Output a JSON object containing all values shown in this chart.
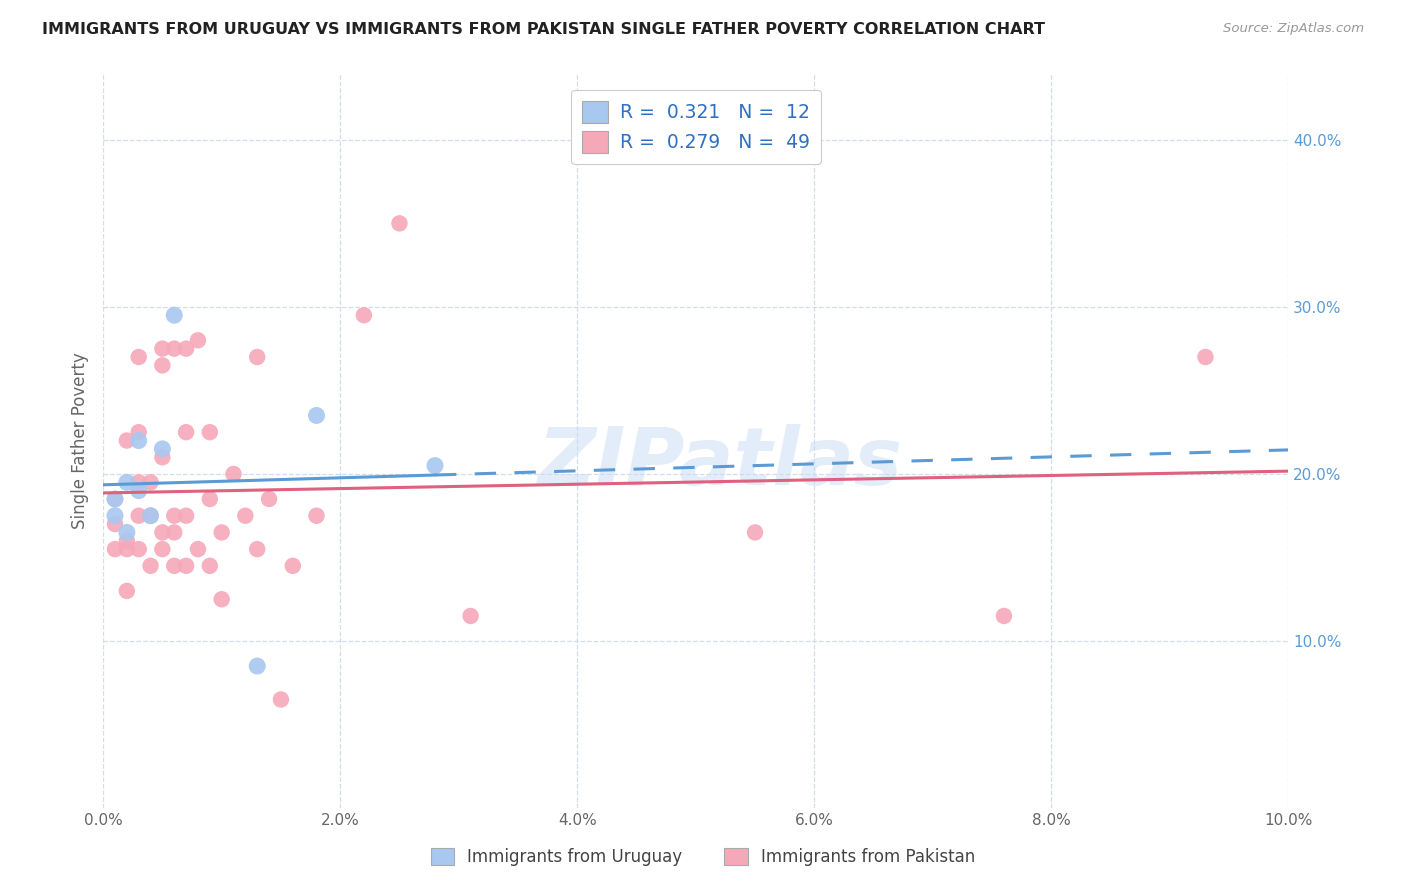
{
  "title": "IMMIGRANTS FROM URUGUAY VS IMMIGRANTS FROM PAKISTAN SINGLE FATHER POVERTY CORRELATION CHART",
  "source": "Source: ZipAtlas.com",
  "ylabel": "Single Father Poverty",
  "xlim": [
    0.0,
    0.1
  ],
  "ylim": [
    0.0,
    0.44
  ],
  "xticks": [
    0.0,
    0.02,
    0.04,
    0.06,
    0.08,
    0.1
  ],
  "yticks": [
    0.1,
    0.2,
    0.3,
    0.4
  ],
  "uruguay_color": "#a8c8f0",
  "pakistan_color": "#f5a8b8",
  "uruguay_line_color": "#5b9bd5",
  "pakistan_line_color": "#e06080",
  "R_uruguay": "0.321",
  "N_uruguay": "12",
  "R_pakistan": "0.279",
  "N_pakistan": "49",
  "watermark": "ZIPatlas",
  "uruguay_x": [
    0.001,
    0.001,
    0.002,
    0.002,
    0.003,
    0.003,
    0.004,
    0.005,
    0.006,
    0.013,
    0.018,
    0.028
  ],
  "uruguay_y": [
    0.175,
    0.185,
    0.165,
    0.195,
    0.19,
    0.22,
    0.175,
    0.215,
    0.295,
    0.085,
    0.235,
    0.205
  ],
  "pakistan_x": [
    0.001,
    0.001,
    0.001,
    0.002,
    0.002,
    0.002,
    0.002,
    0.003,
    0.003,
    0.003,
    0.003,
    0.003,
    0.004,
    0.004,
    0.004,
    0.005,
    0.005,
    0.005,
    0.005,
    0.005,
    0.006,
    0.006,
    0.006,
    0.006,
    0.007,
    0.007,
    0.007,
    0.007,
    0.008,
    0.008,
    0.009,
    0.009,
    0.009,
    0.01,
    0.01,
    0.011,
    0.012,
    0.013,
    0.013,
    0.014,
    0.015,
    0.016,
    0.018,
    0.022,
    0.025,
    0.031,
    0.055,
    0.076,
    0.093
  ],
  "pakistan_y": [
    0.155,
    0.17,
    0.185,
    0.13,
    0.155,
    0.16,
    0.22,
    0.155,
    0.175,
    0.195,
    0.225,
    0.27,
    0.145,
    0.175,
    0.195,
    0.155,
    0.165,
    0.21,
    0.265,
    0.275,
    0.145,
    0.165,
    0.175,
    0.275,
    0.145,
    0.175,
    0.225,
    0.275,
    0.155,
    0.28,
    0.145,
    0.185,
    0.225,
    0.125,
    0.165,
    0.2,
    0.175,
    0.155,
    0.27,
    0.185,
    0.065,
    0.145,
    0.175,
    0.295,
    0.35,
    0.115,
    0.165,
    0.115,
    0.27
  ],
  "legend_text_color": "#333333",
  "legend_value_color": "#3070c0"
}
